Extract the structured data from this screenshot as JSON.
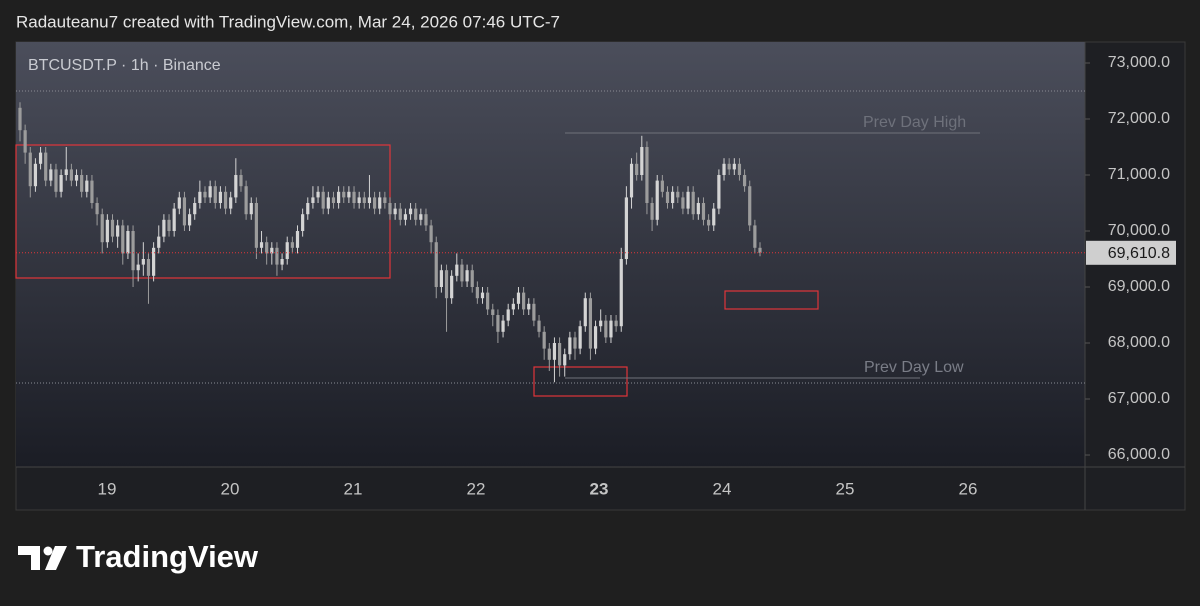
{
  "header": "Radauteanu7 created with TradingView.com, Mar 24, 2026 07:46 UTC-7",
  "footer_brand": "TradingView",
  "chart_data": {
    "type": "candlestick",
    "title": "BTCUSDT.P · 1h · Binance",
    "ylim": [
      65786,
      73375
    ],
    "yticks": [
      {
        "value": 66000,
        "label": "66,000.0"
      },
      {
        "value": 67000,
        "label": "67,000.0"
      },
      {
        "value": 68000,
        "label": "68,000.0"
      },
      {
        "value": 69000,
        "label": "69,000.0"
      },
      {
        "value": 70000,
        "label": "70,000.0"
      },
      {
        "value": 71000,
        "label": "71,000.0"
      },
      {
        "value": 72000,
        "label": "72,000.0"
      },
      {
        "value": 73000,
        "label": "73,000.0"
      }
    ],
    "day_labels": [
      "19",
      "20",
      "21",
      "22",
      "23",
      "24",
      "25",
      "26"
    ],
    "annotations": [
      "Prev Day High",
      "Prev Day Low"
    ],
    "last_price_label": "69,610.8",
    "up_color": "#d4d4d4",
    "down_color": "#9c9c9c",
    "open": [
      72200,
      71800,
      71400,
      70800,
      71200,
      71400,
      70900,
      71100,
      70700,
      71000,
      71100,
      70900,
      71000,
      70700,
      70900,
      70500,
      70300,
      69800,
      70200,
      69900,
      70100,
      69600,
      70000,
      69300,
      69400,
      69500,
      69200,
      69700,
      69900,
      70200,
      70000,
      70400,
      70600,
      70100,
      70300,
      70500,
      70700,
      70600,
      70800,
      70500,
      70700,
      70400,
      70600,
      71000,
      70800,
      70300,
      70500,
      69700,
      69800,
      69600,
      69700,
      69400,
      69500,
      69800,
      69700,
      70000,
      70300,
      70500,
      70600,
      70700,
      70400,
      70600,
      70500,
      70700,
      70600,
      70700,
      70500,
      70600,
      70500,
      70600,
      70400,
      70600,
      70500,
      70300,
      70400,
      70200,
      70300,
      70400,
      70200,
      70300,
      70100,
      69800,
      69000,
      69300,
      68800,
      69200,
      69400,
      69100,
      69300,
      69000,
      68800,
      68900,
      68600,
      68500,
      68200,
      68400,
      68600,
      68700,
      68900,
      68600,
      68700,
      68400,
      68200,
      67900,
      67700,
      68000,
      67600,
      67800,
      68100,
      67900,
      68300,
      68800,
      67900,
      68300,
      68400,
      68100,
      68400,
      68300,
      69500,
      70600,
      71200,
      71000,
      71500,
      70500,
      70200,
      70900,
      70700,
      70500,
      70700,
      70600,
      70400,
      70700,
      70300,
      70500,
      70200,
      70100,
      70400,
      71000,
      71200,
      71100,
      71200,
      71000,
      70800,
      70100,
      69700
    ],
    "high": [
      72300,
      71900,
      71500,
      71300,
      71500,
      71500,
      71200,
      71200,
      71100,
      71500,
      71200,
      71100,
      71100,
      71000,
      71000,
      70600,
      70400,
      70300,
      70300,
      70200,
      70200,
      70100,
      70100,
      69600,
      69800,
      69600,
      69800,
      70100,
      70300,
      70300,
      70500,
      70700,
      70700,
      70400,
      70600,
      70900,
      70800,
      70900,
      70900,
      70800,
      70800,
      70700,
      71300,
      71100,
      70900,
      70600,
      70600,
      70000,
      69900,
      69800,
      69800,
      69600,
      69900,
      69900,
      70100,
      70400,
      70600,
      70800,
      70800,
      70800,
      70700,
      70700,
      70800,
      70800,
      70800,
      70800,
      70700,
      70700,
      71000,
      70700,
      70700,
      70700,
      70600,
      70500,
      70500,
      70400,
      70500,
      70500,
      70400,
      70400,
      70200,
      69900,
      69400,
      69400,
      69300,
      69600,
      69500,
      69400,
      69400,
      69100,
      69000,
      69000,
      68700,
      68600,
      68500,
      68700,
      68800,
      69000,
      69000,
      68800,
      68800,
      68500,
      68300,
      68000,
      68100,
      68100,
      67900,
      68200,
      68200,
      68400,
      68900,
      68900,
      68400,
      68600,
      68500,
      68500,
      68500,
      69700,
      70800,
      71300,
      71400,
      71700,
      71600,
      70600,
      71000,
      71000,
      70800,
      70800,
      70800,
      70700,
      70800,
      70800,
      70600,
      70600,
      70300,
      70500,
      71100,
      71300,
      71300,
      71300,
      71300,
      71100,
      70900,
      70200,
      69800
    ],
    "low": [
      71600,
      71200,
      70600,
      70700,
      71100,
      70800,
      70800,
      70600,
      70600,
      70900,
      70800,
      70800,
      70600,
      70600,
      70400,
      70100,
      69600,
      69700,
      69800,
      69700,
      69400,
      69500,
      69000,
      69100,
      69200,
      68700,
      69100,
      69600,
      69800,
      69900,
      69900,
      70300,
      70000,
      70000,
      70200,
      70400,
      70500,
      70500,
      70400,
      70400,
      70300,
      70300,
      70500,
      70700,
      70200,
      70200,
      69500,
      69600,
      69400,
      69400,
      69200,
      69300,
      69400,
      69600,
      69600,
      69900,
      70200,
      70400,
      70500,
      70300,
      70300,
      70400,
      70400,
      70500,
      70500,
      70400,
      70400,
      70400,
      70400,
      70300,
      70300,
      70400,
      70200,
      70200,
      70100,
      70100,
      70200,
      70100,
      70100,
      70000,
      69600,
      68800,
      68900,
      68200,
      68700,
      69100,
      69000,
      69000,
      68900,
      68700,
      68700,
      68500,
      68300,
      68000,
      68100,
      68300,
      68500,
      68600,
      68500,
      68500,
      68300,
      68100,
      67700,
      67500,
      67300,
      67400,
      67400,
      67700,
      67700,
      67800,
      68200,
      67700,
      67800,
      68200,
      68000,
      68000,
      68200,
      68200,
      69400,
      70400,
      70900,
      70900,
      70300,
      70000,
      70100,
      70600,
      70400,
      70400,
      70500,
      70300,
      70300,
      70200,
      70200,
      70100,
      70000,
      70000,
      70300,
      70900,
      71000,
      71000,
      70900,
      70700,
      70000,
      69600,
      69550
    ],
    "close": [
      71800,
      71400,
      70800,
      71200,
      71400,
      70900,
      71100,
      70700,
      71000,
      71100,
      70900,
      71000,
      70700,
      70900,
      70500,
      70300,
      69800,
      70200,
      69900,
      70100,
      69600,
      70000,
      69300,
      69400,
      69500,
      69200,
      69700,
      69900,
      70200,
      70000,
      70400,
      70600,
      70100,
      70300,
      70500,
      70700,
      70600,
      70800,
      70500,
      70700,
      70400,
      70600,
      71000,
      70800,
      70300,
      70500,
      69700,
      69800,
      69600,
      69700,
      69400,
      69500,
      69800,
      69700,
      70000,
      70300,
      70500,
      70600,
      70700,
      70400,
      70600,
      70500,
      70700,
      70600,
      70700,
      70500,
      70600,
      70500,
      70600,
      70400,
      70600,
      70500,
      70300,
      70400,
      70200,
      70300,
      70400,
      70200,
      70300,
      70100,
      69800,
      69000,
      69300,
      68800,
      69200,
      69400,
      69100,
      69300,
      69000,
      68800,
      68900,
      68600,
      68500,
      68200,
      68400,
      68600,
      68700,
      68900,
      68600,
      68700,
      68400,
      68200,
      67900,
      67700,
      68000,
      67600,
      67800,
      68100,
      67900,
      68300,
      68800,
      67900,
      68300,
      68400,
      68100,
      68400,
      68300,
      69500,
      70600,
      71200,
      71000,
      71500,
      70500,
      70200,
      70900,
      70700,
      70500,
      70700,
      70600,
      70400,
      70700,
      70300,
      70500,
      70200,
      70100,
      70400,
      71000,
      71200,
      71100,
      71200,
      71000,
      70800,
      70100,
      69700,
      69610.8
    ]
  }
}
